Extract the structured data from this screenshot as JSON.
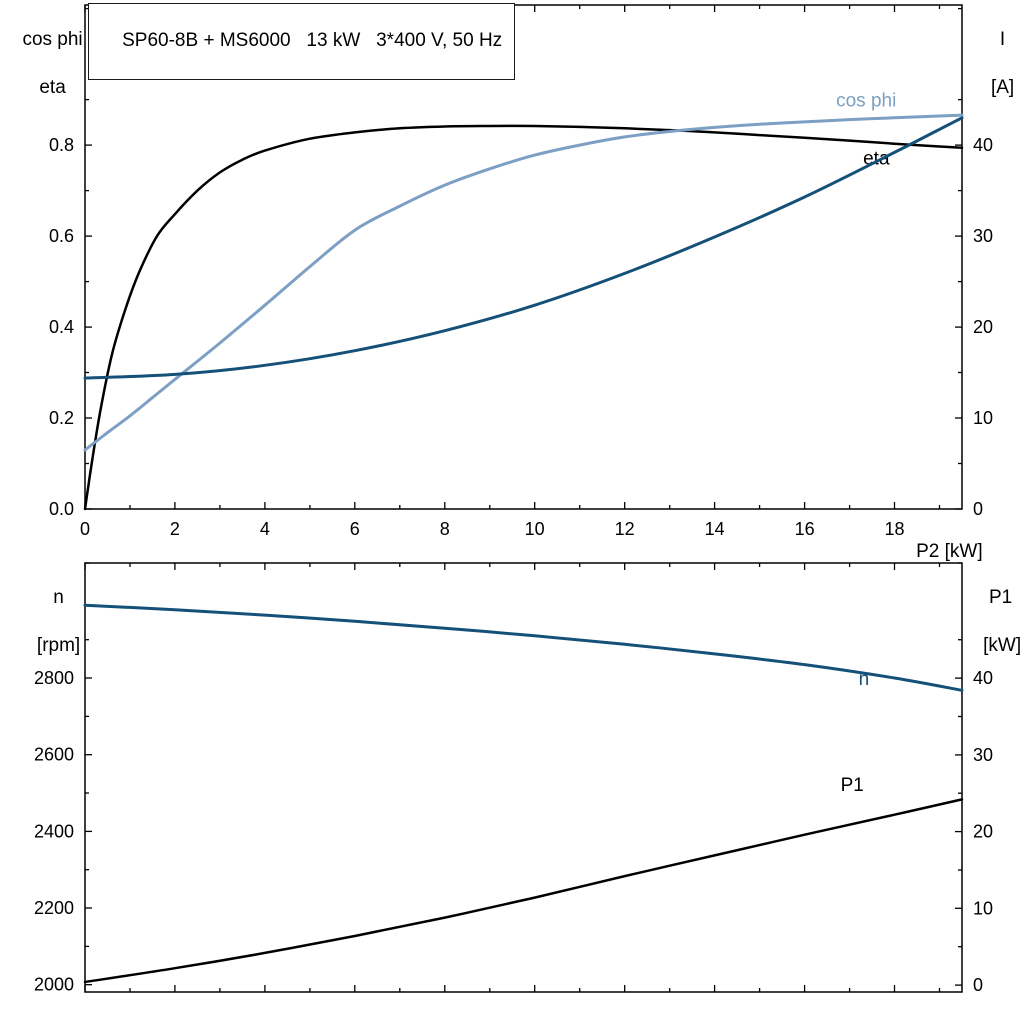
{
  "header": {
    "title": "SP60-8B + MS6000   13 kW   3*400 V, 50 Hz"
  },
  "colors": {
    "axis": "#000000",
    "black": "#000000",
    "light_blue": "#7c9fc3",
    "dark_blue": "#155078",
    "background": "#ffffff"
  },
  "labels": {
    "top_left_line1": "cos phi",
    "top_left_line2": "eta",
    "top_right_line1": "I",
    "top_right_line2": "[A]",
    "bottom_left_line1": "n",
    "bottom_left_line2": "[rpm]",
    "bottom_right_line1": "P1",
    "bottom_right_line2": "[kW]",
    "x_axis": "P2 [kW]"
  },
  "chart_data": [
    {
      "type": "line",
      "title": "SP60-8B + MS6000 13 kW 3*400 V, 50 Hz",
      "xlabel": "P2 [kW]",
      "ylabel_left": "cos phi, eta",
      "ylabel_right": "I [A]",
      "grid": false,
      "legend_position": "on-curve",
      "xlim": [
        0,
        19.5
      ],
      "ylim_left": [
        0,
        1.108
      ],
      "ylim_right": [
        0,
        55.4
      ],
      "xticks": [
        0,
        2,
        4,
        6,
        8,
        10,
        12,
        14,
        16,
        18
      ],
      "xtick_labels": [
        "0",
        "2",
        "4",
        "6",
        "8",
        "10",
        "12",
        "14",
        "16",
        "18"
      ],
      "yticks_left": [
        0,
        0.2,
        0.4,
        0.6,
        0.8
      ],
      "ytick_labels_left": [
        "0.0",
        "0.2",
        "0.4",
        "0.6",
        "0.8"
      ],
      "yticks_right": [
        0,
        10,
        20,
        30,
        40
      ],
      "ytick_labels_right": [
        "0",
        "10",
        "20",
        "30",
        "40"
      ],
      "series": [
        {
          "name": "eta",
          "axis": "left",
          "color": "black",
          "label": {
            "text": "eta",
            "x": 17.3,
            "y": 0.757
          },
          "x": [
            0,
            0.15,
            0.35,
            0.6,
            0.9,
            1.2,
            1.6,
            2,
            2.5,
            3,
            3.5,
            4,
            5,
            6,
            7,
            8,
            9,
            10,
            11,
            12,
            13,
            14,
            15,
            16,
            17,
            18,
            19,
            19.5
          ],
          "y": [
            0,
            0.1,
            0.22,
            0.34,
            0.44,
            0.52,
            0.6,
            0.648,
            0.7,
            0.74,
            0.768,
            0.788,
            0.814,
            0.828,
            0.837,
            0.841,
            0.842,
            0.842,
            0.84,
            0.837,
            0.833,
            0.828,
            0.822,
            0.816,
            0.81,
            0.803,
            0.797,
            0.794
          ]
        },
        {
          "name": "cos-phi",
          "axis": "left",
          "color": "light_blue",
          "label": {
            "text": "cos phi",
            "x": 16.7,
            "y": 0.885
          },
          "x": [
            0,
            0.5,
            1,
            1.5,
            2,
            3,
            4,
            5,
            6,
            7,
            8,
            9,
            10,
            11,
            12,
            13,
            14,
            15,
            16,
            17,
            18,
            19,
            19.5
          ],
          "y": [
            0.13,
            0.168,
            0.205,
            0.245,
            0.285,
            0.365,
            0.448,
            0.533,
            0.613,
            0.666,
            0.712,
            0.748,
            0.778,
            0.8,
            0.818,
            0.83,
            0.839,
            0.846,
            0.851,
            0.856,
            0.86,
            0.864,
            0.866
          ]
        },
        {
          "name": "current",
          "axis": "right",
          "color": "dark_blue",
          "x": [
            0,
            2,
            4,
            6,
            8,
            10,
            12,
            14,
            16,
            18,
            19.5
          ],
          "y": [
            14.4,
            14.8,
            15.8,
            17.4,
            19.6,
            22.4,
            25.9,
            29.9,
            34.3,
            39.2,
            43.0
          ]
        }
      ]
    },
    {
      "type": "line",
      "title": "",
      "xlabel": "",
      "ylabel_left": "n [rpm]",
      "ylabel_right": "P1 [kW]",
      "grid": false,
      "legend_position": "on-curve",
      "xlim": [
        0,
        19.5
      ],
      "ylim_left": [
        1981,
        3100
      ],
      "ylim_right": [
        -0.9,
        55.0
      ],
      "xticks": [
        0,
        2,
        4,
        6,
        8,
        10,
        12,
        14,
        16,
        18
      ],
      "xtick_labels": [],
      "yticks_left": [
        2000,
        2200,
        2400,
        2600,
        2800
      ],
      "ytick_labels_left": [
        "2000",
        "2200",
        "2400",
        "2600",
        "2800"
      ],
      "yticks_right": [
        0,
        10,
        20,
        30,
        40
      ],
      "ytick_labels_right": [
        "0",
        "10",
        "20",
        "30",
        "40"
      ],
      "series": [
        {
          "name": "speed",
          "axis": "left",
          "color": "dark_blue",
          "label": {
            "text": "n",
            "x": 17.2,
            "y": 2782
          },
          "x": [
            0,
            2,
            4,
            6,
            8,
            10,
            12,
            14,
            16,
            18,
            19.5
          ],
          "y": [
            2990,
            2978,
            2964,
            2948,
            2930,
            2910,
            2888,
            2863,
            2835,
            2800,
            2768
          ]
        },
        {
          "name": "p1",
          "axis": "right",
          "color": "black",
          "label": {
            "text": "P1",
            "x": 16.8,
            "y": 25.3
          },
          "x": [
            0,
            2,
            4,
            6,
            8,
            10,
            12,
            14,
            16,
            18,
            19.5
          ],
          "y": [
            0.4,
            2.2,
            4.2,
            6.4,
            8.8,
            11.4,
            14.2,
            16.9,
            19.6,
            22.2,
            24.2
          ]
        }
      ]
    }
  ]
}
